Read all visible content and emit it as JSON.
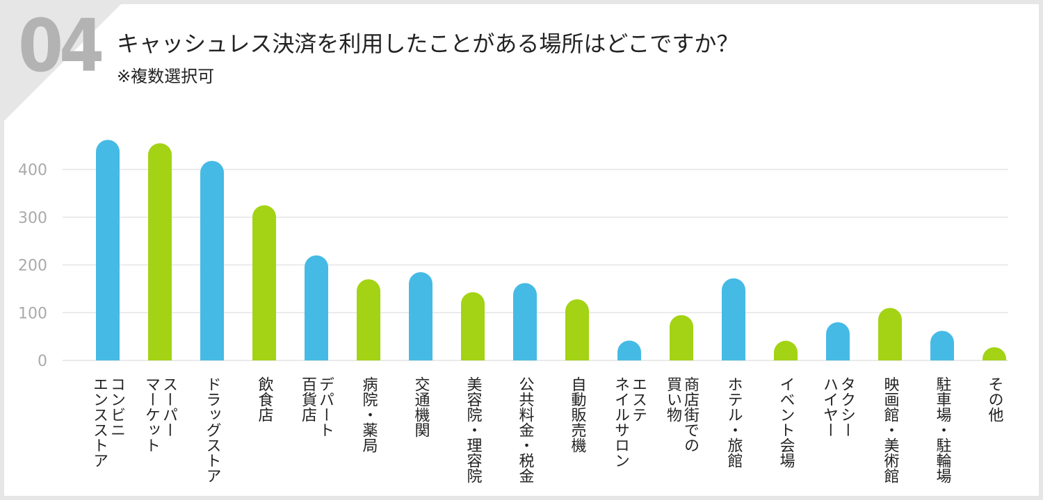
{
  "header": {
    "question_number": "04",
    "title": "キャッシュレス決済を利用したことがある場所はどこですか？",
    "subtitle": "※複数選択可"
  },
  "chart_data": {
    "type": "bar",
    "title": "キャッシュレス決済を利用したことがある場所はどこですか？",
    "subtitle": "※複数選択可",
    "xlabel": "",
    "ylabel": "",
    "ylim": [
      0,
      450
    ],
    "yticks": [
      "0",
      "100",
      "200",
      "300",
      "400"
    ],
    "grid": true,
    "legend": "none",
    "categories": [
      [
        "コンビニ",
        "エンスストア"
      ],
      [
        "スーパー",
        "マーケット"
      ],
      [
        "ドラッグストア"
      ],
      [
        "飲食店"
      ],
      [
        "デパート",
        "百貨店"
      ],
      [
        "病院・薬局"
      ],
      [
        "交通機関"
      ],
      [
        "美容院・理容院"
      ],
      [
        "公共料金・税金"
      ],
      [
        "自動販売機"
      ],
      [
        "エステ",
        "ネイルサロン"
      ],
      [
        "商店街での",
        "買い物"
      ],
      [
        "ホテル・旅館"
      ],
      [
        "イベント会場"
      ],
      [
        "タクシー",
        "ハイヤー"
      ],
      [
        "映画館・美術館"
      ],
      [
        "駐車場・駐輪場"
      ],
      [
        "その他"
      ]
    ],
    "values": [
      462,
      455,
      418,
      325,
      220,
      170,
      185,
      143,
      162,
      128,
      34,
      95,
      172,
      33,
      80,
      110,
      62,
      6
    ],
    "colors": [
      "#45bae5",
      "#a3d314",
      "#45bae5",
      "#a3d314",
      "#45bae5",
      "#a3d314",
      "#45bae5",
      "#a3d314",
      "#45bae5",
      "#a3d314",
      "#45bae5",
      "#a3d314",
      "#45bae5",
      "#a3d314",
      "#45bae5",
      "#a3d314",
      "#45bae5",
      "#a3d314"
    ],
    "palette": {
      "blue": "#45bae5",
      "green": "#a3d314",
      "grid": "#e4e4e4",
      "tick": "#aaaaaa"
    }
  }
}
